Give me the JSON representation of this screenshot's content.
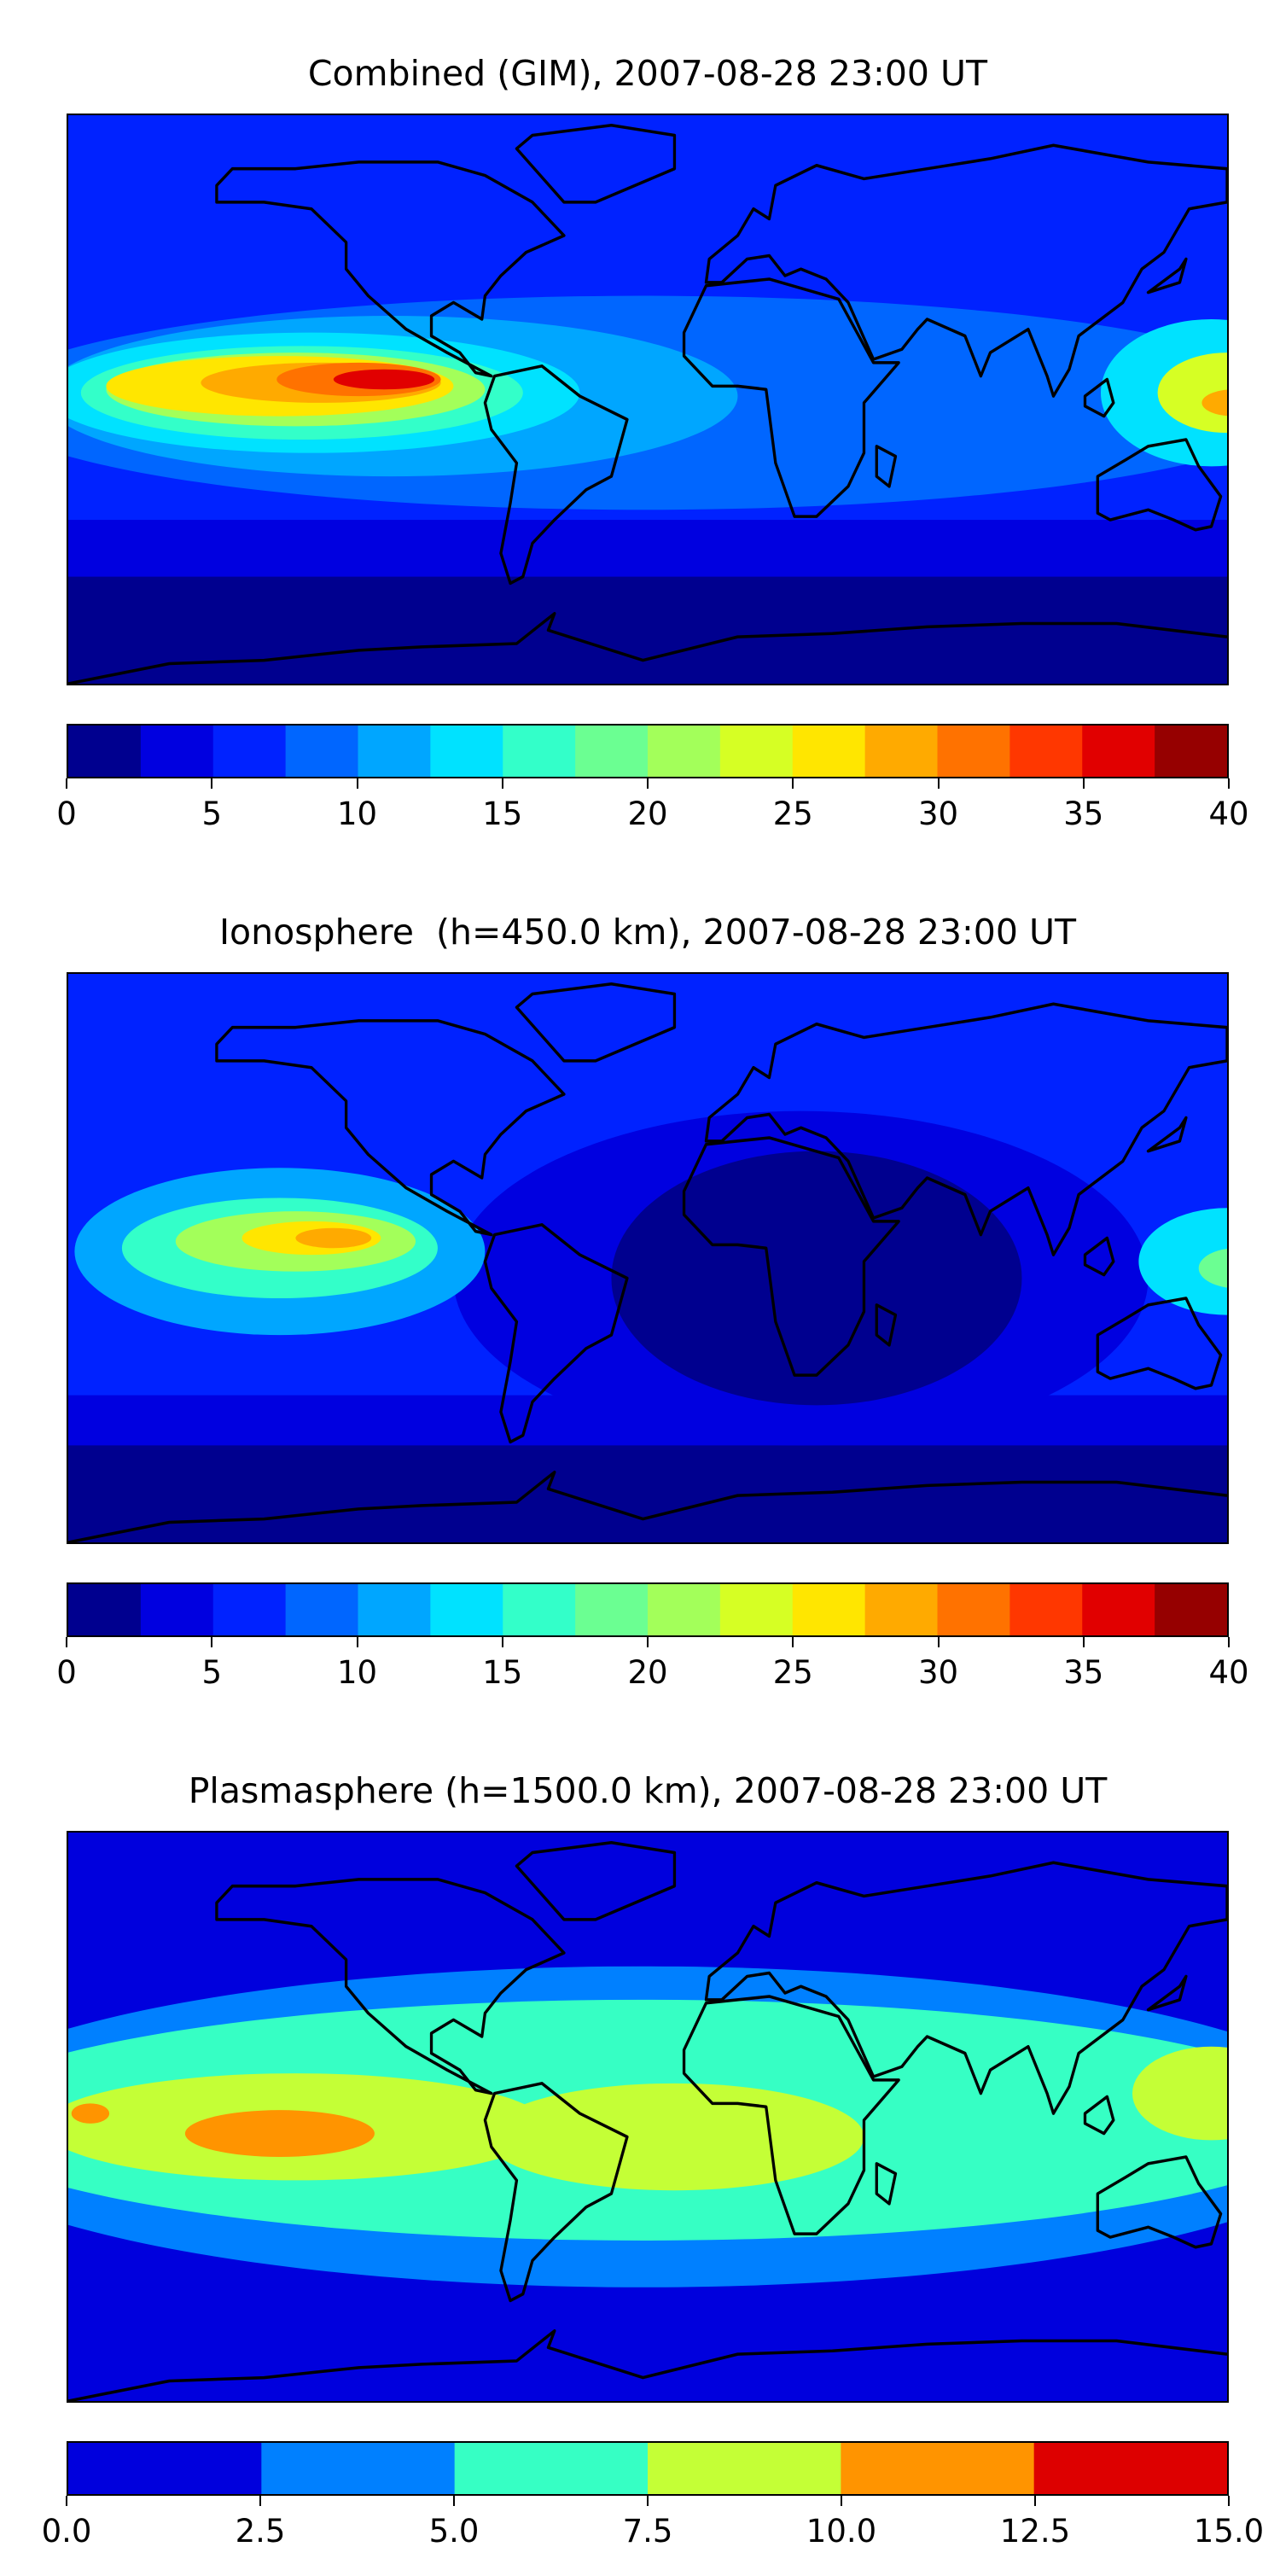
{
  "chart_data": [
    {
      "type": "heatmap",
      "title": "Combined (GIM), 2007-08-28 23:00 UT",
      "colorbar": {
        "min": 0,
        "max": 40,
        "step": 2.5,
        "ticks": [
          "0",
          "5",
          "10",
          "15",
          "20",
          "25",
          "30",
          "35",
          "40"
        ],
        "colors": [
          "#00008f",
          "#0000e0",
          "#0022ff",
          "#0066ff",
          "#00a6ff",
          "#00e2ff",
          "#33ffc9",
          "#6bff92",
          "#a3ff5a",
          "#d6ff24",
          "#ffe600",
          "#ffaa00",
          "#ff7200",
          "#ff3700",
          "#e10000",
          "#960000"
        ]
      },
      "background_level": 2,
      "features": [
        {
          "band": [
            -35,
            -90
          ],
          "level": 1
        },
        {
          "band": [
            -52,
            -90
          ],
          "level": 0
        },
        {
          "lon": -30,
          "lat": 0,
          "rlon": 210,
          "rlat": 32,
          "level": 3
        },
        {
          "lon": -110,
          "lat": 2,
          "rlon": 110,
          "rlat": 24,
          "level": 4
        },
        {
          "lon": -135,
          "lat": 3,
          "rlon": 85,
          "rlat": 18,
          "level": 5
        },
        {
          "lon": -138,
          "lat": 3,
          "rlon": 70,
          "rlat": 14,
          "level": 6
        },
        {
          "lon": -140,
          "lat": 4,
          "rlon": 60,
          "rlat": 11,
          "level": 8
        },
        {
          "lon": -145,
          "lat": 5,
          "rlon": 55,
          "rlat": 9,
          "level": 10
        },
        {
          "lon": -132,
          "lat": 6,
          "rlon": 38,
          "rlat": 6,
          "level": 11
        },
        {
          "lon": -120,
          "lat": 7,
          "rlon": 26,
          "rlat": 5,
          "level": 12
        },
        {
          "lon": -112,
          "lat": 7,
          "rlon": 16,
          "rlat": 3,
          "level": 14
        },
        {
          "lon": 150,
          "lat": 3,
          "rlon": 35,
          "rlat": 22,
          "level": 5
        },
        {
          "lon": 155,
          "lat": 3,
          "rlon": 22,
          "rlat": 12,
          "level": 9
        },
        {
          "lon": 157,
          "lat": 0,
          "rlon": 10,
          "rlat": 4,
          "level": 11
        }
      ]
    },
    {
      "type": "heatmap",
      "title": "Ionosphere  (h=450.0 km), 2007-08-28 23:00 UT",
      "colorbar": {
        "min": 0,
        "max": 40,
        "step": 2.5,
        "ticks": [
          "0",
          "5",
          "10",
          "15",
          "20",
          "25",
          "30",
          "35",
          "40"
        ],
        "colors": [
          "#00008f",
          "#0000e0",
          "#0022ff",
          "#0066ff",
          "#00a6ff",
          "#00e2ff",
          "#33ffc9",
          "#6bff92",
          "#a3ff5a",
          "#d6ff24",
          "#ffe600",
          "#ffaa00",
          "#ff7200",
          "#ff3700",
          "#e10000",
          "#960000"
        ]
      },
      "background_level": 2,
      "features": [
        {
          "band": [
            -40,
            -90
          ],
          "level": 1
        },
        {
          "band": [
            -55,
            -90
          ],
          "level": 0
        },
        {
          "lon": 20,
          "lat": -5,
          "rlon": 110,
          "rlat": 50,
          "level": 1
        },
        {
          "lon": 25,
          "lat": -5,
          "rlon": 65,
          "rlat": 38,
          "level": 0
        },
        {
          "lon": -145,
          "lat": 3,
          "rlon": 65,
          "rlat": 25,
          "level": 4
        },
        {
          "lon": -145,
          "lat": 4,
          "rlon": 50,
          "rlat": 15,
          "level": 6
        },
        {
          "lon": -140,
          "lat": 6,
          "rlon": 38,
          "rlat": 9,
          "level": 8
        },
        {
          "lon": -135,
          "lat": 7,
          "rlon": 22,
          "rlat": 5,
          "level": 10
        },
        {
          "lon": -128,
          "lat": 7,
          "rlon": 12,
          "rlat": 3,
          "level": 11
        },
        {
          "lon": 155,
          "lat": 0,
          "rlon": 28,
          "rlat": 16,
          "level": 5
        },
        {
          "lon": 158,
          "lat": -2,
          "rlon": 12,
          "rlat": 6,
          "level": 7
        }
      ]
    },
    {
      "type": "heatmap",
      "title": "Plasmasphere (h=1500.0 km), 2007-08-28 23:00 UT",
      "colorbar": {
        "min": 0,
        "max": 15,
        "step": 2.5,
        "ticks": [
          "0.0",
          "2.5",
          "5.0",
          "7.5",
          "10.0",
          "12.5",
          "15.0"
        ],
        "colors": [
          "#0000dd",
          "#0080ff",
          "#36ffc4",
          "#c4ff36",
          "#ff9400",
          "#dd0000"
        ]
      },
      "background_level": 0,
      "features": [
        {
          "lon": -30,
          "lat": -2,
          "rlon": 230,
          "rlat": 48,
          "level": 1
        },
        {
          "lon": -30,
          "lat": 0,
          "rlon": 220,
          "rlat": 36,
          "level": 2
        },
        {
          "lon": -140,
          "lat": -2,
          "rlon": 80,
          "rlat": 16,
          "level": 3
        },
        {
          "lon": -20,
          "lat": -5,
          "rlon": 60,
          "rlat": 16,
          "level": 3
        },
        {
          "lon": 150,
          "lat": 8,
          "rlon": 25,
          "rlat": 14,
          "level": 3
        },
        {
          "lon": -145,
          "lat": -4,
          "rlon": 30,
          "rlat": 7,
          "level": 4
        },
        {
          "lon": -205,
          "lat": 2,
          "rlon": 6,
          "rlat": 3,
          "level": 4
        }
      ]
    }
  ]
}
